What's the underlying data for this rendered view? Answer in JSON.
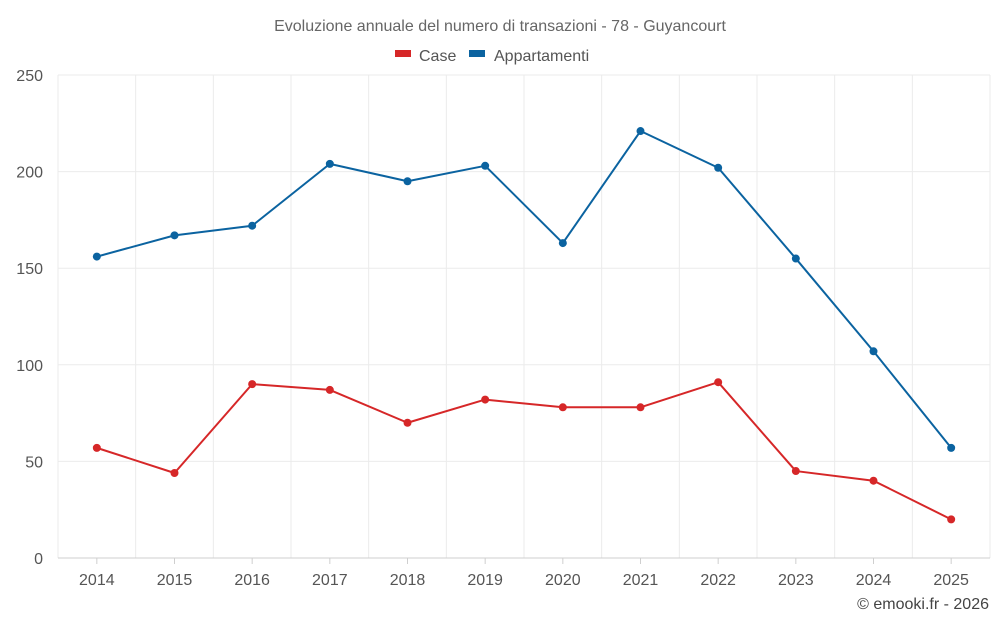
{
  "chart_data": {
    "type": "line",
    "title": "Evoluzione annuale del numero di transazioni - 78 - Guyancourt",
    "categories": [
      "2014",
      "2015",
      "2016",
      "2017",
      "2018",
      "2019",
      "2020",
      "2021",
      "2022",
      "2023",
      "2024",
      "2025"
    ],
    "series": [
      {
        "name": "Case",
        "color": "#d62728",
        "values": [
          57,
          44,
          90,
          87,
          70,
          82,
          78,
          78,
          91,
          45,
          40,
          20
        ]
      },
      {
        "name": "Appartamenti",
        "color": "#0b63a0",
        "values": [
          156,
          167,
          172,
          204,
          195,
          203,
          163,
          221,
          202,
          155,
          107,
          57
        ]
      }
    ],
    "xlabel": "",
    "ylabel": "",
    "ylim": [
      0,
      250
    ],
    "yticks": [
      "0",
      "50",
      "100",
      "150",
      "200",
      "250"
    ],
    "grid": true,
    "legend_position": "top-center"
  },
  "credit": "© emooki.fr - 2026"
}
